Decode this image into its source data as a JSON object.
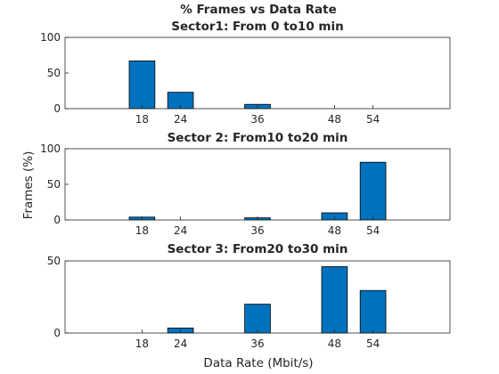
{
  "chart_data": {
    "type": "bar",
    "title": "% Frames vs Data Rate",
    "xlabel": "Data Rate (Mbit/s)",
    "ylabel": "Frames (%)",
    "bar_color": "#0072BD",
    "x_ticks": [
      18,
      24,
      36,
      48,
      54
    ],
    "xlim": [
      6,
      66
    ],
    "grid": false,
    "legend": "none",
    "subplots": [
      {
        "title": "Sector1: From 0 to10 min",
        "ylim": [
          0,
          100
        ],
        "yticks": [
          0,
          50,
          100
        ],
        "x": [
          18,
          24,
          36,
          48,
          54
        ],
        "values": [
          67,
          23,
          6,
          0,
          0
        ]
      },
      {
        "title": "Sector 2: From10 to20 min",
        "ylim": [
          0,
          100
        ],
        "yticks": [
          0,
          50,
          100
        ],
        "x": [
          18,
          24,
          36,
          48,
          54
        ],
        "values": [
          4,
          0,
          3,
          10,
          81
        ]
      },
      {
        "title": "Sector 3: From20 to30 min",
        "ylim": [
          0,
          50
        ],
        "yticks": [
          0,
          50
        ],
        "x": [
          18,
          24,
          36,
          48,
          54
        ],
        "values": [
          0,
          3.5,
          20,
          46,
          29.5
        ]
      }
    ]
  }
}
